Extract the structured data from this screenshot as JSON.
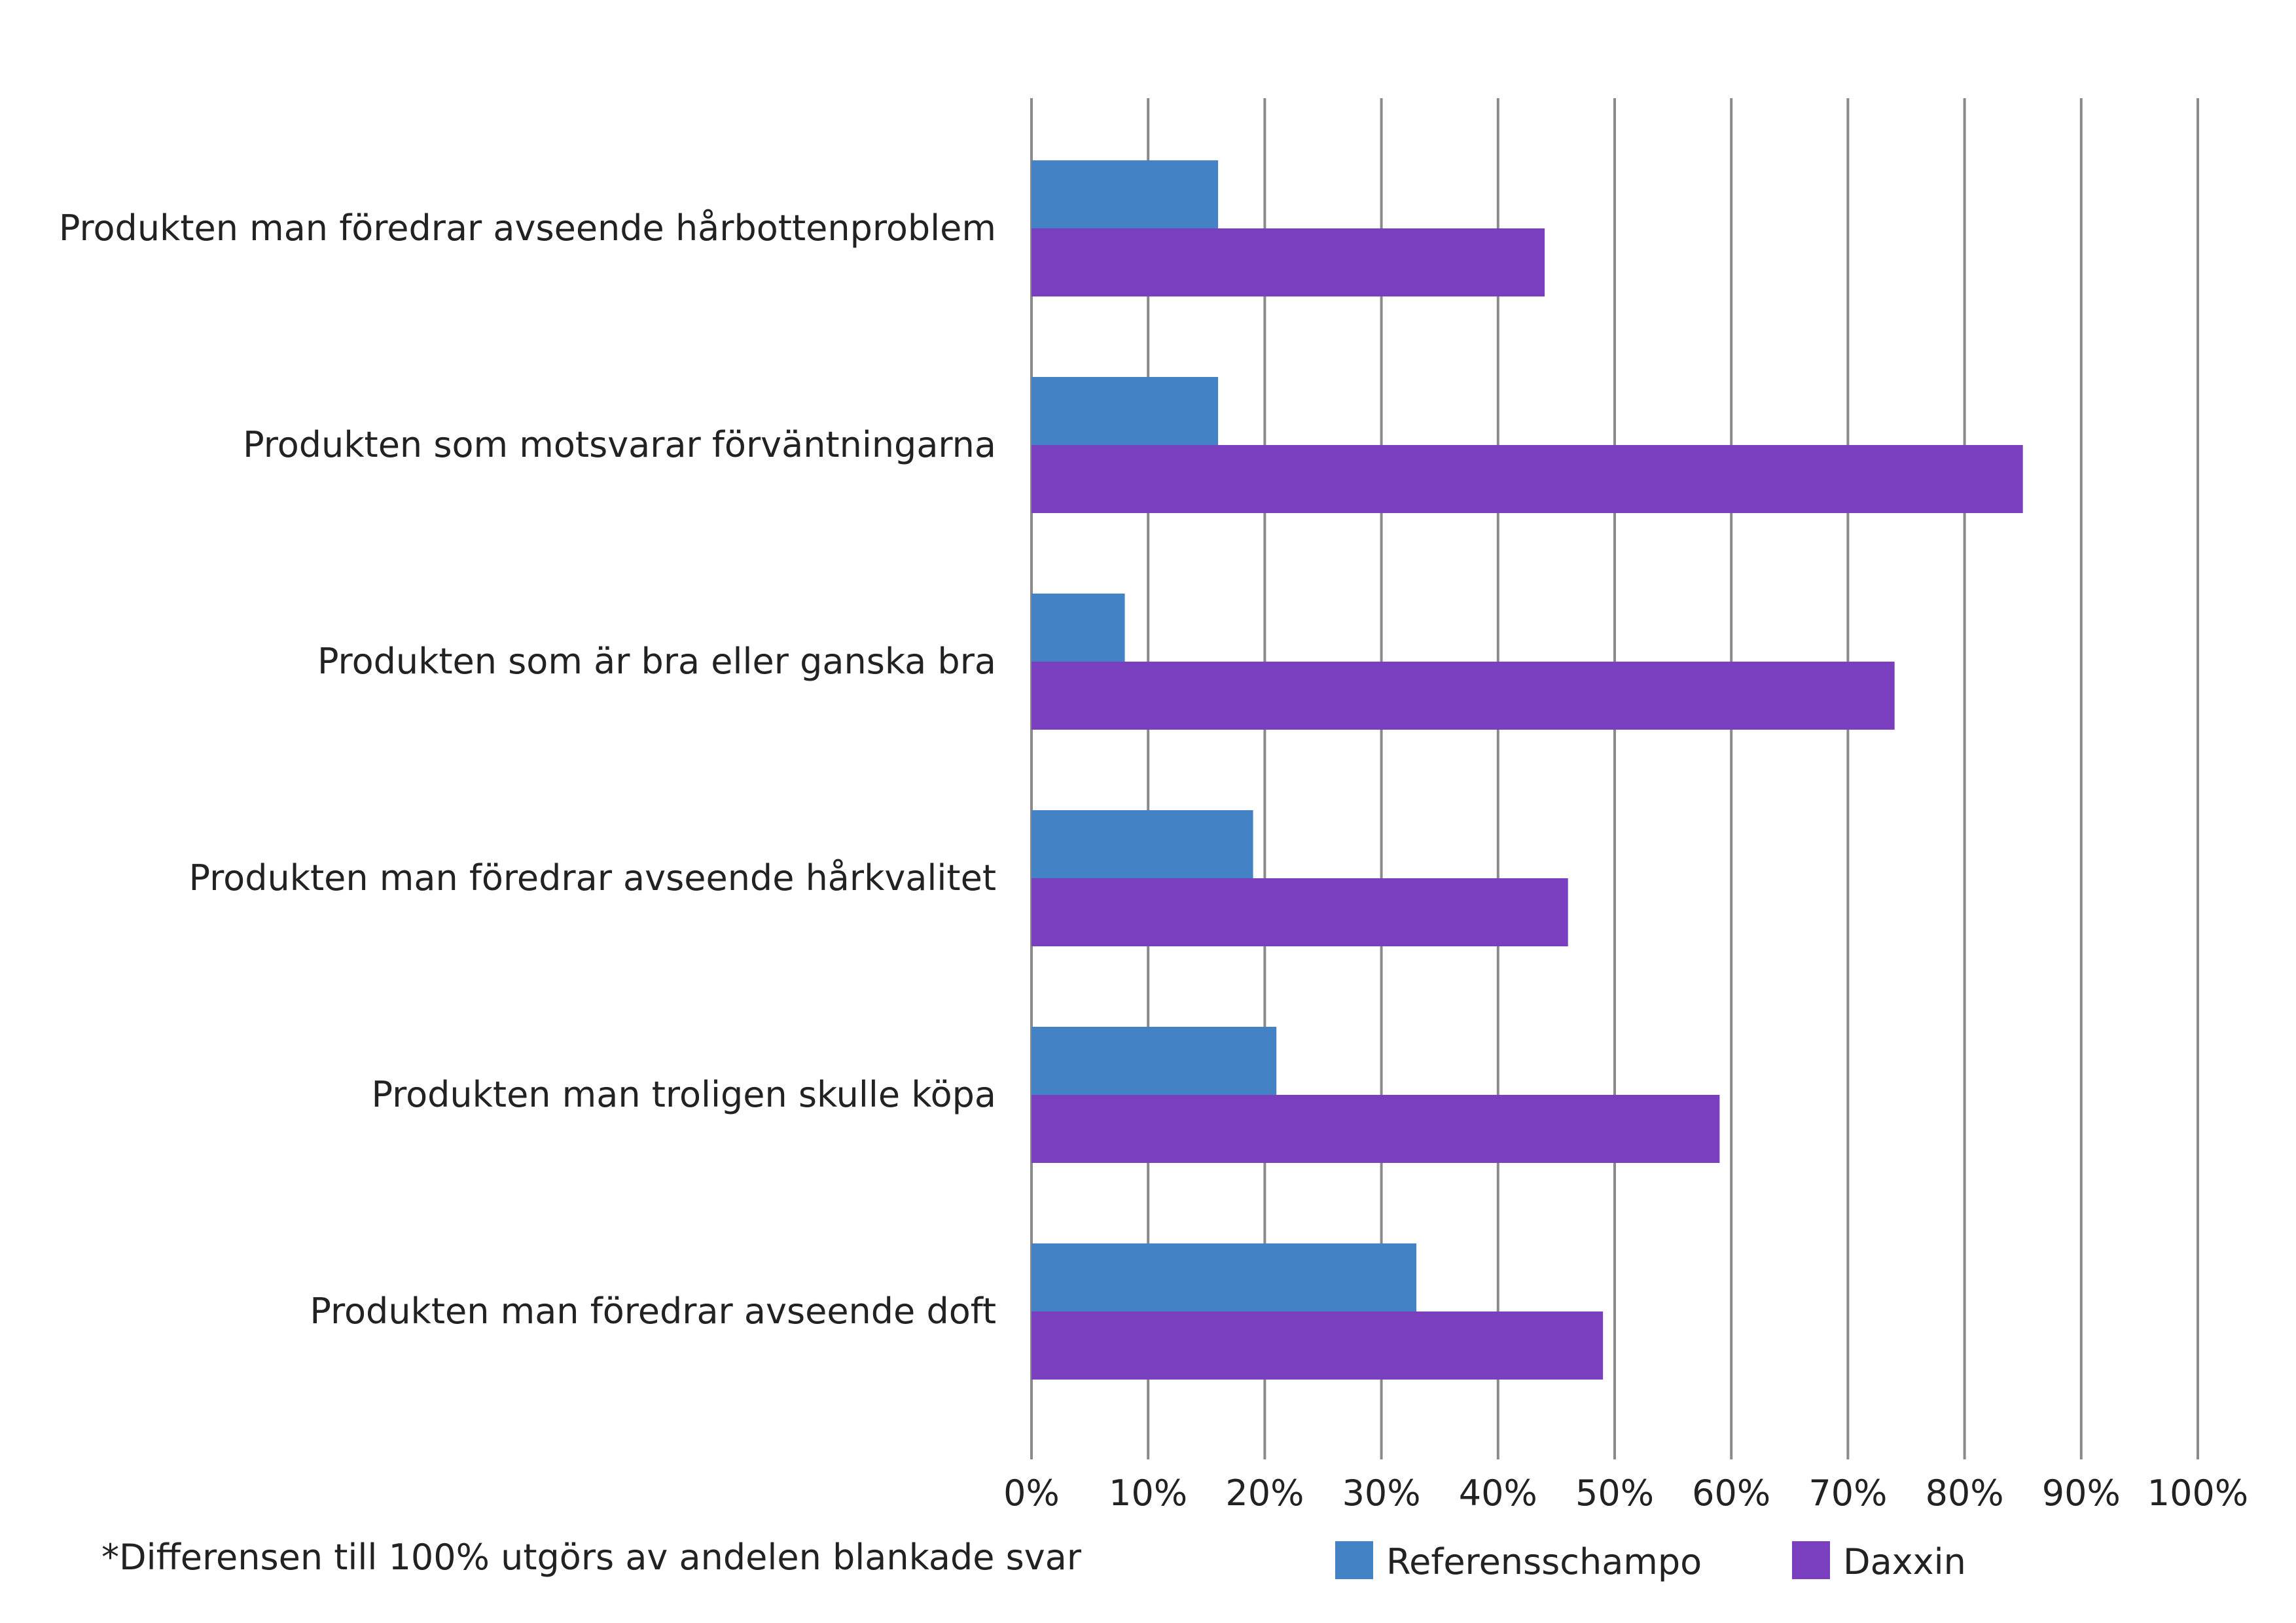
{
  "chart_data": {
    "type": "bar",
    "orientation": "horizontal",
    "title": "",
    "xlabel": "",
    "ylabel": "",
    "xlim": [
      0,
      100
    ],
    "grid": true,
    "legend_position": "bottom-right",
    "tick_labels": [
      "0%",
      "10%",
      "20%",
      "30%",
      "40%",
      "50%",
      "60%",
      "70%",
      "80%",
      "90%",
      "100%"
    ],
    "categories": [
      "Produkten man föredrar avseende hårbottenproblem",
      "Produkten som motsvarar förväntningarna",
      "Produkten som är bra eller ganska bra",
      "Produkten man föredrar avseende hårkvalitet",
      "Produkten man troligen skulle köpa",
      "Produkten man föredrar avseende doft"
    ],
    "series": [
      {
        "name": "Referensschampo",
        "color": "#4382c4",
        "values": [
          16,
          16,
          8,
          19,
          21,
          33
        ]
      },
      {
        "name": "Daxxin",
        "color": "#7a3fbe",
        "values": [
          44,
          85,
          74,
          46,
          59,
          49
        ]
      }
    ],
    "footnote": "*Differensen till 100% utgörs av andelen blankade svar"
  }
}
